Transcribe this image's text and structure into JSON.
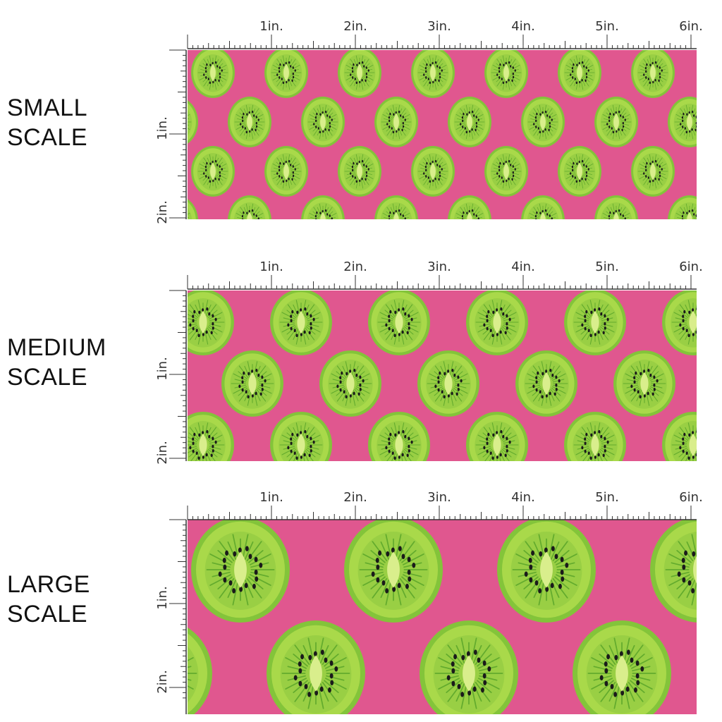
{
  "colors": {
    "background": "#ffffff",
    "fabric_pink": "#e0578f",
    "kiwi_rind": "#83c43a",
    "kiwi_outer_flesh": "#a9d94a",
    "kiwi_inner_flesh": "#8cc63f",
    "kiwi_core": "#d9ee8c",
    "kiwi_rays": "#5aa52a",
    "kiwi_seed": "#1a1a1a",
    "ruler": "#333333"
  },
  "ruler": {
    "inch_labels": [
      "1in.",
      "2in.",
      "3in.",
      "4in.",
      "5in.",
      "6in."
    ],
    "vertical_labels": [
      "1in.",
      "2in."
    ]
  },
  "panels": [
    {
      "id": "small",
      "label_line1": "SMALL",
      "label_line2": "SCALE",
      "kiwi_size_level": 1
    },
    {
      "id": "medium",
      "label_line1": "MEDIUM",
      "label_line2": "SCALE",
      "kiwi_size_level": 2
    },
    {
      "id": "large",
      "label_line1": "LARGE",
      "label_line2": "SCALE",
      "kiwi_size_level": 3
    }
  ],
  "icons": [
    "kiwi-slice-icon",
    "ruler-icon"
  ]
}
